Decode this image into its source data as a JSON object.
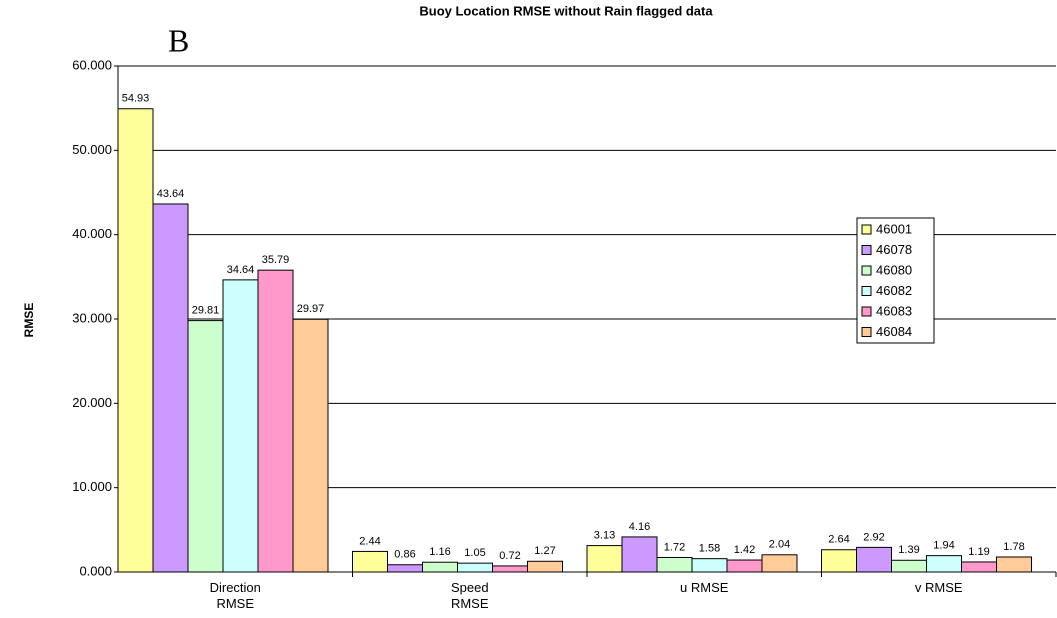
{
  "chart_data": {
    "type": "bar",
    "title": "Buoy Location RMSE without Rain flagged data",
    "annotation": "B",
    "y_label": "RMSE",
    "categories": [
      "Direction\nRMSE",
      "Speed\nRMSE",
      "u RMSE",
      "v RMSE"
    ],
    "series": [
      {
        "name": "46001",
        "color": "#ffff99",
        "values": [
          54.93,
          2.44,
          3.13,
          2.64
        ]
      },
      {
        "name": "46078",
        "color": "#cc99ff",
        "values": [
          43.64,
          0.86,
          4.16,
          2.92
        ]
      },
      {
        "name": "46080",
        "color": "#ccffcc",
        "values": [
          29.81,
          1.16,
          1.72,
          1.39
        ]
      },
      {
        "name": "46082",
        "color": "#ccffff",
        "values": [
          34.64,
          1.05,
          1.58,
          1.94
        ]
      },
      {
        "name": "46083",
        "color": "#ff99cc",
        "values": [
          35.79,
          0.72,
          1.42,
          1.19
        ]
      },
      {
        "name": "46084",
        "color": "#ffcc99",
        "values": [
          29.97,
          1.27,
          2.04,
          1.78
        ]
      }
    ],
    "ylim": [
      0,
      60
    ],
    "yticks": [
      {
        "value": 0,
        "label": "0.000"
      },
      {
        "value": 10,
        "label": "10.000"
      },
      {
        "value": 20,
        "label": "20.000"
      },
      {
        "value": 30,
        "label": "30.000"
      },
      {
        "value": 40,
        "label": "40.000"
      },
      {
        "value": 50,
        "label": "50.000"
      },
      {
        "value": 60,
        "label": "60.000"
      }
    ],
    "grid": true,
    "legend": "right"
  }
}
